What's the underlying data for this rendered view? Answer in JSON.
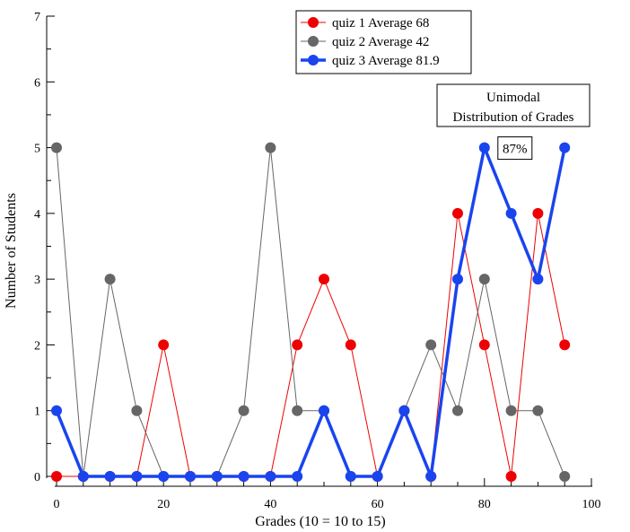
{
  "chart_data": {
    "type": "line",
    "xlabel": "Grades (10 = 10 to 15)",
    "ylabel": "Number of Students",
    "xlim": [
      0,
      100
    ],
    "ylim": [
      0,
      7
    ],
    "x_ticks": [
      0,
      20,
      40,
      60,
      80,
      100
    ],
    "y_ticks": [
      0,
      1,
      2,
      3,
      4,
      5,
      6,
      7
    ],
    "grid": false,
    "legend_position": "top-center",
    "x": [
      0,
      5,
      10,
      15,
      20,
      25,
      30,
      35,
      40,
      45,
      50,
      55,
      60,
      65,
      70,
      75,
      80,
      85,
      90,
      95
    ],
    "series": [
      {
        "name": "quiz 1  Average 68",
        "color": "#ee0000",
        "line_width": "thin",
        "values": [
          0,
          0,
          0,
          0,
          2,
          0,
          0,
          0,
          0,
          2,
          3,
          2,
          0,
          1,
          0,
          4,
          2,
          0,
          4,
          2
        ]
      },
      {
        "name": "quiz 2  Average 42",
        "color": "#666666",
        "line_width": "thin",
        "values": [
          5,
          0,
          3,
          1,
          0,
          0,
          0,
          1,
          5,
          1,
          1,
          0,
          0,
          1,
          2,
          1,
          3,
          1,
          1,
          0
        ]
      },
      {
        "name": "quiz 3 Average 81.9",
        "color": "#1a44ee",
        "line_width": "thick",
        "values": [
          1,
          0,
          0,
          0,
          0,
          0,
          0,
          0,
          0,
          0,
          1,
          0,
          0,
          1,
          0,
          3,
          5,
          4,
          3,
          5
        ]
      }
    ],
    "annotations": [
      {
        "id": "unimodal",
        "lines": [
          "Unimodal",
          "Distribution of Grades"
        ],
        "position": "top-right"
      },
      {
        "id": "percent",
        "text": "87%",
        "near": {
          "x": 80,
          "y": 5
        }
      }
    ]
  }
}
